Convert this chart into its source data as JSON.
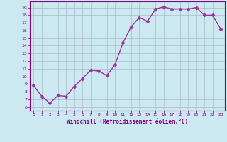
{
  "x": [
    0,
    1,
    2,
    3,
    4,
    5,
    6,
    7,
    8,
    9,
    10,
    11,
    12,
    13,
    14,
    15,
    16,
    17,
    18,
    19,
    20,
    21,
    22,
    23
  ],
  "y": [
    8.8,
    7.4,
    6.5,
    7.5,
    7.4,
    8.7,
    9.7,
    10.8,
    10.7,
    10.1,
    11.5,
    14.4,
    16.5,
    17.7,
    17.2,
    18.8,
    19.1,
    18.8,
    18.8,
    18.8,
    19.0,
    18.0,
    18.0,
    16.2
  ],
  "line_color": "#993399",
  "marker": "D",
  "markersize": 2.5,
  "linewidth": 1.0,
  "xlabel": "Windchill (Refroidissement éolien,°C)",
  "xlim": [
    -0.5,
    23.5
  ],
  "ylim": [
    5.5,
    19.8
  ],
  "yticks": [
    6,
    7,
    8,
    9,
    10,
    11,
    12,
    13,
    14,
    15,
    16,
    17,
    18,
    19
  ],
  "xticks": [
    0,
    1,
    2,
    3,
    4,
    5,
    6,
    7,
    8,
    9,
    10,
    11,
    12,
    13,
    14,
    15,
    16,
    17,
    18,
    19,
    20,
    21,
    22,
    23
  ],
  "bg_color": "#cce8f0",
  "grid_color": "#aabbcc",
  "tick_color": "#800080",
  "label_color": "#800080",
  "spine_color": "#800080"
}
